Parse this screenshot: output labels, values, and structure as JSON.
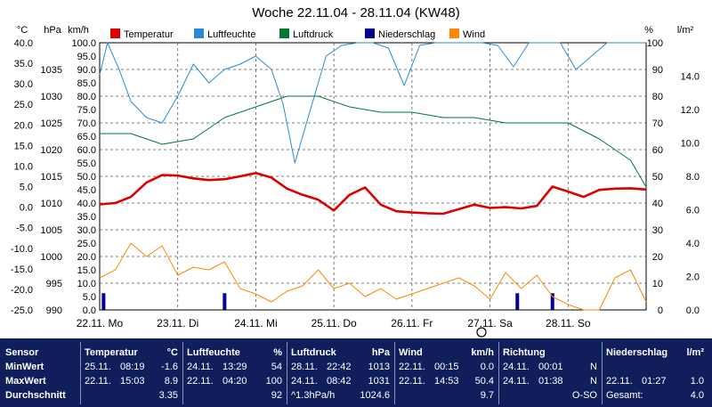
{
  "chart_data": {
    "type": "line",
    "title": "Woche 22.11.04 - 28.11.04 (KW48)",
    "x_tick_labels": [
      "22.11. Mo",
      "23.11. Di",
      "24.11. Mi",
      "25.11. Do",
      "26.11. Fr",
      "27.11. Sa",
      "28.11. So"
    ],
    "axes": {
      "temperature": {
        "unit": "°C",
        "range": [
          -25,
          40
        ],
        "ticks": [
          "40.0",
          "35.0",
          "30.0",
          "25.0",
          "20.0",
          "15.0",
          "10.0",
          "5.0",
          "0.0",
          "-5.0",
          "-10.0",
          "-15.0",
          "-20.0",
          "-25.0"
        ]
      },
      "pressure": {
        "unit": "hPa",
        "range": [
          990,
          1040
        ],
        "ticks": [
          "1035",
          "1030",
          "1025",
          "1020",
          "1015",
          "1010",
          "1005",
          "1000",
          "995",
          "990"
        ]
      },
      "wind": {
        "unit": "km/h",
        "range": [
          0,
          100
        ],
        "ticks": [
          "100.0",
          "95.0",
          "90.0",
          "85.0",
          "80.0",
          "75.0",
          "70.0",
          "65.0",
          "60.0",
          "55.0",
          "50.0",
          "45.0",
          "40.0",
          "35.0",
          "30.0",
          "25.0",
          "20.0",
          "15.0",
          "10.0",
          "5.0",
          "0.0"
        ]
      },
      "humidity": {
        "unit": "%",
        "range": [
          0,
          100
        ],
        "ticks": [
          "100",
          "90",
          "80",
          "70",
          "60",
          "50",
          "40",
          "30",
          "20",
          "10",
          "0"
        ]
      },
      "precipitation": {
        "unit": "l/m²",
        "range": [
          0,
          16
        ],
        "ticks": [
          "14.0",
          "12.0",
          "10.0",
          "8.0",
          "6.0",
          "4.0",
          "2.0",
          "0.0"
        ]
      }
    },
    "series": [
      {
        "name": "Temperatur",
        "color": "#dd0000",
        "axis": "temperature",
        "x": [
          0,
          0.2,
          0.4,
          0.6,
          0.8,
          1.0,
          1.2,
          1.4,
          1.6,
          1.8,
          2.0,
          2.2,
          2.4,
          2.6,
          2.8,
          3.0,
          3.2,
          3.4,
          3.6,
          3.8,
          4.0,
          4.2,
          4.4,
          4.6,
          4.8,
          5.0,
          5.2,
          5.4,
          5.6,
          5.8,
          6.0,
          6.2,
          6.4,
          6.6,
          6.8,
          7.0
        ],
        "y": [
          0.7,
          1.0,
          2.5,
          6.0,
          7.8,
          7.7,
          7.0,
          6.6,
          6.8,
          7.5,
          8.3,
          7.2,
          4.5,
          3.0,
          1.8,
          -0.8,
          3.0,
          4.8,
          0.6,
          -1.0,
          -1.3,
          -1.5,
          -1.6,
          -0.5,
          0.6,
          -0.2,
          0.0,
          -0.3,
          0.3,
          5.0,
          3.8,
          2.5,
          4.2,
          4.5,
          4.6,
          4.3
        ]
      },
      {
        "name": "Luftfeuchte",
        "color": "#2a8ad8",
        "axis": "humidity",
        "x": [
          0,
          0.1,
          0.25,
          0.4,
          0.6,
          0.8,
          1.0,
          1.2,
          1.4,
          1.6,
          1.8,
          2.0,
          2.2,
          2.35,
          2.5,
          2.7,
          2.9,
          3.1,
          3.3,
          3.5,
          3.7,
          3.9,
          4.1,
          4.3,
          4.5,
          4.7,
          4.9,
          5.1,
          5.3,
          5.5,
          5.7,
          5.9,
          6.1,
          6.3,
          6.5,
          6.7,
          7.0
        ],
        "y": [
          88,
          100,
          90,
          78,
          72,
          70,
          80,
          92,
          85,
          90,
          92,
          95,
          90,
          77,
          55,
          75,
          95,
          99,
          100,
          100,
          98,
          84,
          99,
          100,
          100,
          100,
          100,
          99,
          91,
          100,
          100,
          100,
          90,
          95,
          100,
          100,
          100
        ]
      },
      {
        "name": "Luftdruck",
        "color": "#007733",
        "axis": "pressure",
        "x": [
          0,
          0.4,
          0.8,
          1.2,
          1.6,
          2.0,
          2.4,
          2.8,
          3.2,
          3.6,
          4.0,
          4.4,
          4.8,
          5.2,
          5.6,
          6.0,
          6.4,
          6.8,
          7.0
        ],
        "y": [
          1023,
          1023,
          1021,
          1022,
          1026,
          1028,
          1030,
          1030,
          1028,
          1027,
          1027,
          1026,
          1026,
          1025,
          1025,
          1025,
          1022,
          1018,
          1013
        ]
      },
      {
        "name": "Niederschlag",
        "color": "#000099",
        "axis": "precipitation",
        "x": [
          0.05,
          1.6,
          5.35,
          5.8
        ],
        "y": [
          1.0,
          1.0,
          1.0,
          1.0
        ]
      },
      {
        "name": "Wind",
        "color": "#ff8800",
        "axis": "wind",
        "x": [
          0,
          0.2,
          0.4,
          0.6,
          0.8,
          1.0,
          1.2,
          1.4,
          1.6,
          1.8,
          2.0,
          2.2,
          2.4,
          2.6,
          2.8,
          3.0,
          3.2,
          3.4,
          3.6,
          3.8,
          4.0,
          4.2,
          4.4,
          4.6,
          4.8,
          5.0,
          5.2,
          5.4,
          5.6,
          5.8,
          6.0,
          6.2,
          6.4,
          6.6,
          6.8,
          7.0
        ],
        "y": [
          12,
          15,
          25,
          20,
          24,
          13,
          16,
          15,
          18,
          8,
          6,
          3,
          7,
          9,
          15,
          8,
          10,
          5,
          8,
          4,
          6,
          8,
          10,
          12,
          9,
          4,
          14,
          8,
          13,
          5,
          2,
          0,
          0,
          12,
          15,
          3
        ]
      }
    ]
  },
  "stats": {
    "sensor": {
      "header": "Sensor",
      "rows": [
        "MinWert",
        "MaxWert",
        "Durchschnitt"
      ]
    },
    "temperatur": {
      "header": "Temperatur",
      "unit": "°C",
      "rows": [
        [
          "25.11.",
          "08:19",
          "-1.6"
        ],
        [
          "22.11.",
          "15:03",
          "8.9"
        ],
        [
          "",
          "",
          "3.35"
        ]
      ]
    },
    "luftfeuchte": {
      "header": "Luftfeuchte",
      "unit": "%",
      "rows": [
        [
          "24.11.",
          "13:29",
          "54"
        ],
        [
          "22.11.",
          "04:20",
          "100"
        ],
        [
          "",
          "",
          "92"
        ]
      ]
    },
    "luftdruck": {
      "header": "Luftdruck",
      "unit": "hPa",
      "rows": [
        [
          "28.11.",
          "22:42",
          "1013"
        ],
        [
          "24.11.",
          "08:42",
          "1031"
        ],
        [
          "^1.3hPa/h",
          "",
          "1024.6"
        ]
      ]
    },
    "wind": {
      "header": "Wind",
      "unit": "km/h",
      "rows": [
        [
          "22.11.",
          "00:15",
          "0.0"
        ],
        [
          "22.11.",
          "14:53",
          "50.4"
        ],
        [
          "",
          "",
          "9.7"
        ]
      ]
    },
    "richtung": {
      "header": "Richtung",
      "rows": [
        [
          "24.11.",
          "00:01",
          "N"
        ],
        [
          "24.11.",
          "01:38",
          "N"
        ],
        [
          "",
          "",
          "O-SO"
        ]
      ]
    },
    "niederschlag": {
      "header": "Niederschlag",
      "unit": "l/m²",
      "rows": [
        [
          "",
          "",
          ""
        ],
        [
          "22.11.",
          "01:27",
          "1.0"
        ],
        [
          "Gesamt:",
          "",
          "4.0"
        ]
      ]
    }
  }
}
